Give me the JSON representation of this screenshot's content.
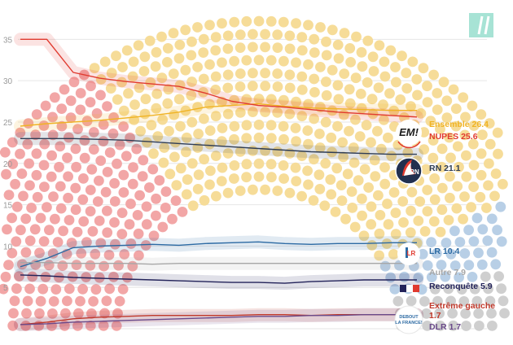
{
  "colors": {
    "ensemble": "#f0b324",
    "nupes": "#e03a2f",
    "rn": "#2f3d55",
    "lr": "#2c6aa3",
    "autre": "#a7a7a7",
    "reconquete": "#23235a",
    "extreme_gauche": "#c0392b",
    "dlr": "#6a4a8a",
    "brand": "#a7e3d5",
    "grid": "#e6e6e6",
    "seat_yellow": "#f6dc98",
    "seat_red": "#f2a6a6",
    "seat_blue": "#b8cfe6",
    "seat_grey": "#cfcfcf"
  },
  "logos": {
    "ensemble": "EM!",
    "rn": "RN",
    "lr": "LR",
    "debout": "DEBOUT LA FRANCE!"
  },
  "chart_data": {
    "type": "line",
    "ylim": [
      0,
      37
    ],
    "yticks": [
      5,
      10,
      15,
      20,
      25,
      30,
      35
    ],
    "x": [
      0,
      1,
      2,
      3,
      4,
      5,
      6,
      7,
      8,
      9,
      10,
      11,
      12,
      13,
      14,
      15
    ],
    "series": [
      {
        "name": "Ensemble",
        "key": "ensemble",
        "label": "Ensemble 26.4",
        "values": [
          24.5,
          24.8,
          25.0,
          25.2,
          25.5,
          25.8,
          26.2,
          26.8,
          27.0,
          27.2,
          26.9,
          26.7,
          26.6,
          26.5,
          26.4,
          26.4
        ]
      },
      {
        "name": "NUPES",
        "key": "nupes",
        "label": "NUPES 25.6",
        "values": [
          35.0,
          35.0,
          31.0,
          30.3,
          29.9,
          29.6,
          29.3,
          28.5,
          27.5,
          27.0,
          26.8,
          26.5,
          26.2,
          26.0,
          25.8,
          25.6
        ]
      },
      {
        "name": "RN",
        "key": "rn",
        "label": "RN 21.1",
        "values": [
          23.0,
          23.0,
          23.0,
          22.9,
          22.8,
          22.6,
          22.4,
          22.2,
          22.0,
          21.8,
          21.6,
          21.4,
          21.3,
          21.2,
          21.1,
          21.1
        ]
      },
      {
        "name": "LR",
        "key": "lr",
        "label": "LR 10.4",
        "values": [
          7.5,
          8.5,
          9.8,
          10.0,
          10.1,
          10.2,
          10.1,
          10.3,
          10.4,
          10.5,
          10.3,
          10.2,
          10.3,
          10.3,
          10.4,
          10.4
        ]
      },
      {
        "name": "Autre",
        "key": "autre",
        "label": "Autre 7.9",
        "values": [
          8.0,
          8.0,
          7.9,
          7.9,
          7.9,
          7.8,
          7.9,
          7.9,
          7.9,
          7.9,
          7.9,
          7.9,
          7.9,
          7.9,
          7.9,
          7.9
        ]
      },
      {
        "name": "Reconquête",
        "key": "reconquete",
        "label": "Reconquête 5.9",
        "values": [
          6.5,
          6.4,
          6.2,
          6.1,
          6.0,
          5.9,
          5.8,
          5.7,
          5.6,
          5.6,
          5.5,
          5.7,
          5.8,
          5.9,
          5.9,
          5.9
        ]
      },
      {
        "name": "Extrême gauche",
        "key": "extreme_gauche",
        "label": "Extrême gauche\n1.7",
        "values": [
          0.5,
          0.8,
          1.2,
          1.4,
          1.5,
          1.6,
          1.6,
          1.6,
          1.6,
          1.7,
          1.7,
          1.6,
          1.7,
          1.7,
          1.7,
          1.7
        ]
      },
      {
        "name": "DLR",
        "key": "dlr",
        "label": "DLR 1.7",
        "values": [
          0.5,
          0.6,
          0.8,
          0.9,
          1.0,
          1.1,
          1.2,
          1.3,
          1.4,
          1.5,
          1.5,
          1.6,
          1.6,
          1.7,
          1.7,
          1.7
        ]
      }
    ]
  }
}
